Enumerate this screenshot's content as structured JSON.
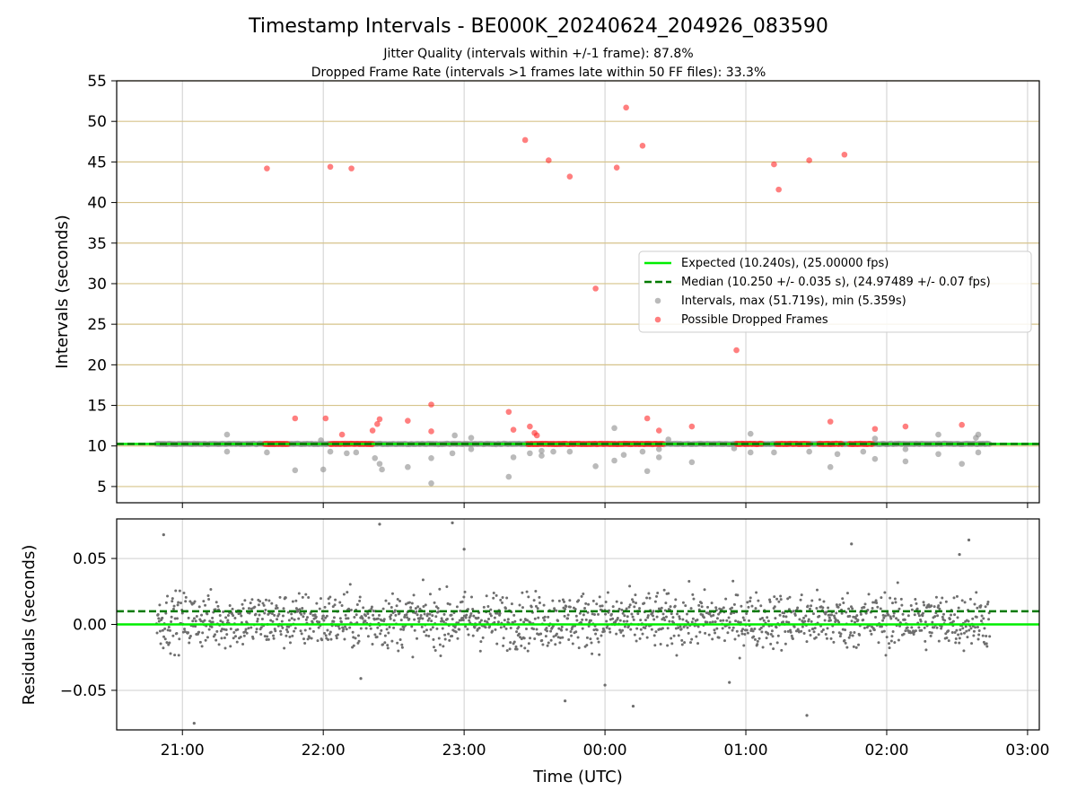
{
  "title": "Timestamp Intervals - BE000K_20240624_204926_083590",
  "subtitle_1": "Jitter Quality (intervals within +/-1 frame): 87.8%",
  "subtitle_2": "Dropped Frame Rate (intervals >1 frames late within 50 FF files): 33.3%",
  "colors": {
    "expected": "#00ee00",
    "median": "#007a00",
    "intervals": "#8c8c8c",
    "dropped": "#ff2a2a",
    "residuals": "#6e6e6e",
    "hgrid_top": "#d6c38a",
    "grid": "#cfcfcf"
  },
  "chart_data": [
    {
      "type": "scatter",
      "ylabel": "Intervals (seconds)",
      "ylim": [
        3,
        55
      ],
      "yticks": [
        5,
        10,
        15,
        20,
        25,
        30,
        35,
        40,
        45,
        50,
        55
      ],
      "grid": true,
      "legend_position": "center-right",
      "x_range_hours": [
        "20:32",
        "03:05"
      ],
      "expected_line": {
        "label": "Expected (10.240s), (25.00000 fps)",
        "y": 10.24
      },
      "median_line": {
        "label": "Median (10.250 +/- 0.035 s), (24.97489 +/- 0.07 fps)",
        "y": 10.25
      },
      "intervals_series": {
        "label": "Intervals, max (51.719s), min (5.359s)",
        "time_start": "20:49",
        "time_end": "02:44",
        "outliers": [
          {
            "t": "21:19",
            "y": 11.4
          },
          {
            "t": "21:19",
            "y": 9.3
          },
          {
            "t": "21:36",
            "y": 9.2
          },
          {
            "t": "21:48",
            "y": 7.0
          },
          {
            "t": "21:59",
            "y": 10.7
          },
          {
            "t": "22:00",
            "y": 7.1
          },
          {
            "t": "22:03",
            "y": 9.3
          },
          {
            "t": "22:10",
            "y": 9.1
          },
          {
            "t": "22:14",
            "y": 9.2
          },
          {
            "t": "22:22",
            "y": 8.5
          },
          {
            "t": "22:24",
            "y": 7.8
          },
          {
            "t": "22:25",
            "y": 7.1
          },
          {
            "t": "22:36",
            "y": 7.4
          },
          {
            "t": "22:46",
            "y": 8.5
          },
          {
            "t": "22:46",
            "y": 5.4
          },
          {
            "t": "22:55",
            "y": 9.1
          },
          {
            "t": "22:56",
            "y": 11.3
          },
          {
            "t": "23:03",
            "y": 9.6
          },
          {
            "t": "23:03",
            "y": 11.0
          },
          {
            "t": "23:19",
            "y": 6.2
          },
          {
            "t": "23:21",
            "y": 8.6
          },
          {
            "t": "23:28",
            "y": 9.1
          },
          {
            "t": "23:33",
            "y": 8.8
          },
          {
            "t": "23:33",
            "y": 9.4
          },
          {
            "t": "23:38",
            "y": 9.3
          },
          {
            "t": "23:45",
            "y": 9.3
          },
          {
            "t": "23:56",
            "y": 7.5
          },
          {
            "t": "00:04",
            "y": 12.2
          },
          {
            "t": "00:04",
            "y": 8.2
          },
          {
            "t": "00:08",
            "y": 8.9
          },
          {
            "t": "00:16",
            "y": 9.3
          },
          {
            "t": "00:18",
            "y": 6.9
          },
          {
            "t": "00:23",
            "y": 9.6
          },
          {
            "t": "00:23",
            "y": 8.6
          },
          {
            "t": "00:27",
            "y": 10.8
          },
          {
            "t": "00:37",
            "y": 8.0
          },
          {
            "t": "00:55",
            "y": 9.7
          },
          {
            "t": "01:02",
            "y": 9.2
          },
          {
            "t": "01:02",
            "y": 11.5
          },
          {
            "t": "01:12",
            "y": 9.2
          },
          {
            "t": "01:27",
            "y": 9.3
          },
          {
            "t": "01:36",
            "y": 7.4
          },
          {
            "t": "01:39",
            "y": 9.0
          },
          {
            "t": "01:50",
            "y": 9.3
          },
          {
            "t": "01:55",
            "y": 8.4
          },
          {
            "t": "01:55",
            "y": 10.9
          },
          {
            "t": "02:08",
            "y": 8.1
          },
          {
            "t": "02:08",
            "y": 9.6
          },
          {
            "t": "02:22",
            "y": 9.0
          },
          {
            "t": "02:22",
            "y": 11.4
          },
          {
            "t": "02:32",
            "y": 7.8
          },
          {
            "t": "02:38",
            "y": 11.0
          },
          {
            "t": "02:39",
            "y": 11.4
          },
          {
            "t": "02:39",
            "y": 9.2
          }
        ]
      },
      "dropped_series": {
        "label": "Possible Dropped Frames",
        "clusters": [
          {
            "t0": "21:35",
            "t1": "21:45",
            "y": 10.25
          },
          {
            "t0": "22:03",
            "t1": "22:21",
            "y": 10.25
          },
          {
            "t0": "23:27",
            "t1": "23:56",
            "y": 10.25
          },
          {
            "t0": "23:56",
            "t1": "00:25",
            "y": 10.25
          },
          {
            "t0": "00:56",
            "t1": "01:07",
            "y": 10.25
          },
          {
            "t0": "01:13",
            "t1": "01:27",
            "y": 10.25
          },
          {
            "t0": "01:31",
            "t1": "01:41",
            "y": 10.25
          },
          {
            "t0": "01:44",
            "t1": "01:54",
            "y": 10.25
          }
        ],
        "points": [
          {
            "t": "21:36",
            "y": 44.2
          },
          {
            "t": "22:03",
            "y": 44.4
          },
          {
            "t": "22:12",
            "y": 44.2
          },
          {
            "t": "21:48",
            "y": 13.4
          },
          {
            "t": "22:01",
            "y": 13.4
          },
          {
            "t": "22:08",
            "y": 11.4
          },
          {
            "t": "22:21",
            "y": 11.9
          },
          {
            "t": "22:23",
            "y": 12.7
          },
          {
            "t": "22:24",
            "y": 13.3
          },
          {
            "t": "22:36",
            "y": 13.1
          },
          {
            "t": "22:46",
            "y": 15.1
          },
          {
            "t": "22:46",
            "y": 11.8
          },
          {
            "t": "23:19",
            "y": 14.2
          },
          {
            "t": "23:21",
            "y": 12.0
          },
          {
            "t": "23:26",
            "y": 47.7
          },
          {
            "t": "23:28",
            "y": 12.4
          },
          {
            "t": "23:30",
            "y": 11.6
          },
          {
            "t": "23:31",
            "y": 11.3
          },
          {
            "t": "23:36",
            "y": 45.2
          },
          {
            "t": "23:45",
            "y": 43.2
          },
          {
            "t": "23:56",
            "y": 29.4
          },
          {
            "t": "00:05",
            "y": 44.3
          },
          {
            "t": "00:09",
            "y": 51.7
          },
          {
            "t": "00:16",
            "y": 47.0
          },
          {
            "t": "00:18",
            "y": 13.4
          },
          {
            "t": "00:23",
            "y": 11.9
          },
          {
            "t": "00:37",
            "y": 12.4
          },
          {
            "t": "00:56",
            "y": 21.8
          },
          {
            "t": "01:12",
            "y": 44.7
          },
          {
            "t": "01:14",
            "y": 41.6
          },
          {
            "t": "01:27",
            "y": 45.2
          },
          {
            "t": "01:36",
            "y": 13.0
          },
          {
            "t": "01:42",
            "y": 45.9
          },
          {
            "t": "01:55",
            "y": 12.1
          },
          {
            "t": "02:08",
            "y": 12.4
          },
          {
            "t": "02:32",
            "y": 12.6
          }
        ]
      }
    },
    {
      "type": "scatter",
      "ylabel": "Residuals (seconds)",
      "xlabel": "Time (UTC)",
      "ylim": [
        -0.08,
        0.08
      ],
      "yticks": [
        0.05,
        0.0,
        -0.05
      ],
      "ytick_labels": [
        "0.05",
        "0.00",
        "−0.05"
      ],
      "xticks": [
        "21:00",
        "22:00",
        "23:00",
        "00:00",
        "01:00",
        "02:00",
        "03:00"
      ],
      "grid": true,
      "expected_line": {
        "y": 0.0
      },
      "median_line": {
        "y": 0.01
      },
      "residual_band": {
        "time_start": "20:49",
        "time_end": "02:44",
        "center": 0.0,
        "spread": 0.038
      },
      "residual_outliers": [
        {
          "t": "20:52",
          "y": 0.068
        },
        {
          "t": "21:05",
          "y": -0.075
        },
        {
          "t": "22:24",
          "y": 0.076
        },
        {
          "t": "22:55",
          "y": 0.077
        },
        {
          "t": "23:00",
          "y": 0.057
        },
        {
          "t": "23:43",
          "y": -0.058
        },
        {
          "t": "00:00",
          "y": -0.046
        },
        {
          "t": "00:12",
          "y": -0.062
        },
        {
          "t": "01:26",
          "y": -0.069
        },
        {
          "t": "01:45",
          "y": 0.061
        },
        {
          "t": "02:35",
          "y": 0.064
        },
        {
          "t": "02:31",
          "y": 0.053
        },
        {
          "t": "22:16",
          "y": -0.041
        },
        {
          "t": "00:53",
          "y": -0.044
        }
      ]
    }
  ]
}
